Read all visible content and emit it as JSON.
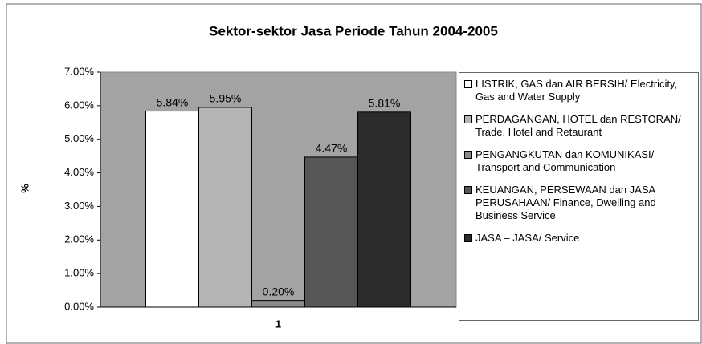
{
  "chart_data": {
    "type": "bar",
    "title": "Sektor-sektor Jasa Periode Tahun 2004-2005",
    "y_label": "%",
    "categories": [
      "1"
    ],
    "series": [
      {
        "name": "LISTRIK, GAS dan AIR BERSIH/ Electricity, Gas and Water Supply",
        "color": "#ffffff",
        "values": [
          5.84
        ],
        "value_labels": [
          "5.84%"
        ]
      },
      {
        "name": "PERDAGANGAN, HOTEL dan RESTORAN/ Trade, Hotel and Retaurant",
        "color": "#b5b5b5",
        "values": [
          5.95
        ],
        "value_labels": [
          "5.95%"
        ]
      },
      {
        "name": "PENGANGKUTAN dan KOMUNIKASI/ Transport and Communication",
        "color": "#8a8a8a",
        "values": [
          0.2
        ],
        "value_labels": [
          "0.20%"
        ]
      },
      {
        "name": "KEUANGAN, PERSEWAAN dan JASA PERUSAHAAN/ Finance, Dwelling and Business Service",
        "color": "#575757",
        "values": [
          4.47
        ],
        "value_labels": [
          "4.47%"
        ]
      },
      {
        "name": "JASA – JASA/ Service",
        "color": "#2b2b2b",
        "values": [
          5.81
        ],
        "value_labels": [
          "5.81%"
        ]
      }
    ],
    "ylim": [
      0,
      7
    ],
    "yticks": [
      {
        "value": 0,
        "label": "0.00%"
      },
      {
        "value": 1,
        "label": "1.00%"
      },
      {
        "value": 2,
        "label": "2.00%"
      },
      {
        "value": 3,
        "label": "3.00%"
      },
      {
        "value": 4,
        "label": "4.00%"
      },
      {
        "value": 5,
        "label": "5.00%"
      },
      {
        "value": 6,
        "label": "6.00%"
      },
      {
        "value": 7,
        "label": "7.00%"
      }
    ],
    "grid": false,
    "legend": "right"
  }
}
